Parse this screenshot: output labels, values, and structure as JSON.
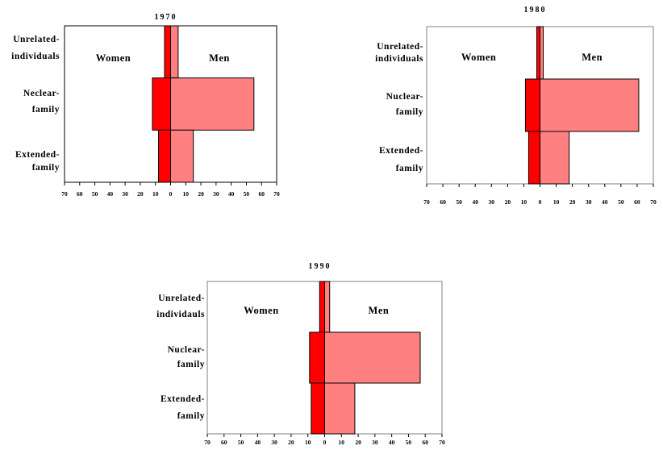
{
  "chart_data": [
    {
      "type": "bar",
      "title": "1970",
      "categories": [
        [
          "Unrelated-",
          "individuals"
        ],
        [
          "Neclear-",
          "family"
        ],
        [
          "Extended-",
          "family"
        ]
      ],
      "side_labels": {
        "left": "Women",
        "right": "Men"
      },
      "series": [
        {
          "name": "Women",
          "values": [
            4,
            12,
            8
          ]
        },
        {
          "name": "Men",
          "values": [
            5,
            55,
            15
          ]
        }
      ],
      "xlim": [
        -70,
        70
      ],
      "tick_labels": [
        "70",
        "60",
        "50",
        "40",
        "30",
        "20",
        "10",
        "0",
        "10",
        "20",
        "30",
        "40",
        "50",
        "60",
        "70"
      ],
      "colors": {
        "women": "#ff0000",
        "men": "#ff8080"
      }
    },
    {
      "type": "bar",
      "title": "1980",
      "categories": [
        [
          "Unrelated-",
          "individuals"
        ],
        [
          "Nuclear-",
          "family"
        ],
        [
          "Extended-",
          "family"
        ]
      ],
      "side_labels": {
        "left": "Women",
        "right": "Men"
      },
      "series": [
        {
          "name": "Women",
          "values": [
            2,
            9,
            7
          ]
        },
        {
          "name": "Men",
          "values": [
            2,
            61,
            18
          ]
        }
      ],
      "xlim": [
        -70,
        70
      ],
      "tick_labels": [
        "70",
        "60",
        "50",
        "40",
        "30",
        "20",
        "10",
        "0",
        "10",
        "20",
        "30",
        "40",
        "50",
        "60",
        "70"
      ],
      "colors": {
        "women": "#ff0000",
        "men": "#ff8080"
      }
    },
    {
      "type": "bar",
      "title": "1990",
      "categories": [
        [
          "Unrelated-",
          "individauls"
        ],
        [
          "Nuclear-",
          "family"
        ],
        [
          "Extended-",
          "family"
        ]
      ],
      "side_labels": {
        "left": "Women",
        "right": "Men"
      },
      "series": [
        {
          "name": "Women",
          "values": [
            3,
            9,
            8
          ]
        },
        {
          "name": "Men",
          "values": [
            3,
            57,
            18
          ]
        }
      ],
      "xlim": [
        -70,
        70
      ],
      "tick_labels": [
        "70",
        "60",
        "50",
        "40",
        "30",
        "20",
        "10",
        "0",
        "10",
        "20",
        "30",
        "40",
        "50",
        "60",
        "70"
      ],
      "colors": {
        "women": "#ff0000",
        "men": "#ff8080"
      }
    }
  ]
}
